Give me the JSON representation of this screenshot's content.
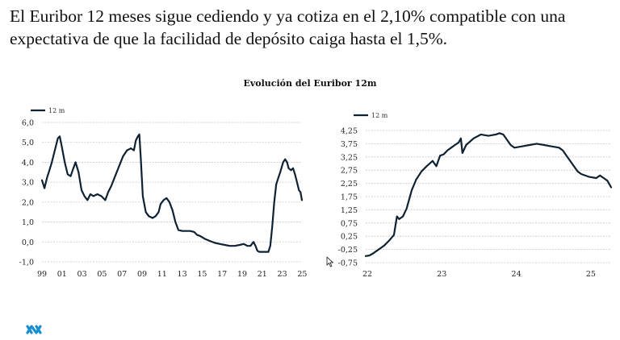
{
  "headline": "El Euribor 12 meses sigue cediendo y ya cotiza en el 2,10% compatible con una expectativa de que la facilidad de depósito caiga hasta el 1,5%.",
  "colors": {
    "line": "#0f2233",
    "grid": "#c8c8c8",
    "logo": "#1a8fd0"
  },
  "icons": {
    "logo": "brand-logo-icon",
    "cursor": "mouse-pointer-icon"
  },
  "chart_data": [
    {
      "type": "line",
      "title": "Evolución del Euribor 12m",
      "legend": "12 m",
      "xlabel": "",
      "ylabel": "",
      "xlim": [
        1999,
        2025.3
      ],
      "ylim": [
        -1.0,
        6.0
      ],
      "yticks": [
        "6,0",
        "5,0",
        "4,0",
        "3,0",
        "2,0",
        "1,0",
        "0,0",
        "-1,0"
      ],
      "xticks": [
        "99",
        "01",
        "03",
        "05",
        "07",
        "09",
        "11",
        "13",
        "15",
        "17",
        "19",
        "21",
        "23",
        "25"
      ],
      "series": [
        {
          "name": "12 m",
          "x": [
            1999.0,
            1999.25,
            1999.5,
            1999.75,
            2000.0,
            2000.3,
            2000.6,
            2000.8,
            2001.0,
            2001.3,
            2001.6,
            2001.9,
            2002.1,
            2002.4,
            2002.7,
            2003.0,
            2003.3,
            2003.6,
            2003.9,
            2004.2,
            2004.6,
            2005.0,
            2005.4,
            2005.7,
            2006.0,
            2006.4,
            2006.8,
            2007.2,
            2007.6,
            2008.0,
            2008.3,
            2008.5,
            2008.7,
            2008.85,
            2009.0,
            2009.2,
            2009.5,
            2009.8,
            2010.2,
            2010.5,
            2010.8,
            2011.0,
            2011.3,
            2011.6,
            2011.9,
            2012.2,
            2012.5,
            2012.8,
            2013.2,
            2013.6,
            2014.0,
            2014.4,
            2014.7,
            2015.0,
            2015.5,
            2016.0,
            2016.5,
            2017.0,
            2017.5,
            2018.0,
            2018.5,
            2019.0,
            2019.4,
            2019.8,
            2020.1,
            2020.4,
            2020.6,
            2020.8,
            2021.0,
            2021.5,
            2021.9,
            2022.1,
            2022.3,
            2022.5,
            2022.7,
            2022.9,
            2023.1,
            2023.4,
            2023.6,
            2023.8,
            2023.95,
            2024.2,
            2024.4,
            2024.6,
            2024.8,
            2025.0,
            2025.15,
            2025.3
          ],
          "values": [
            3.1,
            2.7,
            3.2,
            3.6,
            4.0,
            4.6,
            5.2,
            5.3,
            4.8,
            4.0,
            3.4,
            3.3,
            3.6,
            4.0,
            3.5,
            2.6,
            2.3,
            2.1,
            2.4,
            2.3,
            2.4,
            2.3,
            2.1,
            2.5,
            2.8,
            3.3,
            3.8,
            4.3,
            4.6,
            4.7,
            4.6,
            5.1,
            5.3,
            5.4,
            4.2,
            2.3,
            1.5,
            1.3,
            1.2,
            1.3,
            1.5,
            1.9,
            2.1,
            2.2,
            2.0,
            1.6,
            1.0,
            0.6,
            0.55,
            0.55,
            0.55,
            0.5,
            0.35,
            0.3,
            0.15,
            0.05,
            -0.05,
            -0.1,
            -0.15,
            -0.2,
            -0.2,
            -0.15,
            -0.1,
            -0.2,
            -0.2,
            0.0,
            -0.2,
            -0.45,
            -0.5,
            -0.5,
            -0.5,
            -0.2,
            0.8,
            2.0,
            2.9,
            3.2,
            3.5,
            4.0,
            4.15,
            4.0,
            3.7,
            3.6,
            3.7,
            3.4,
            3.0,
            2.6,
            2.5,
            2.1
          ]
        }
      ]
    },
    {
      "type": "line",
      "title": "",
      "legend": "12 m",
      "xlabel": "",
      "ylabel": "",
      "xlim": [
        2022.0,
        2025.3
      ],
      "ylim": [
        -0.75,
        4.25
      ],
      "yticks": [
        "4,25",
        "3,75",
        "3,25",
        "2,75",
        "2,25",
        "1,75",
        "1,25",
        "0,75",
        "0,25",
        "-0,25",
        "-0,75"
      ],
      "xticks": [
        "22",
        "23",
        "24",
        "25"
      ],
      "series": [
        {
          "name": "12 m",
          "x": [
            2022.0,
            2022.05,
            2022.1,
            2022.15,
            2022.2,
            2022.25,
            2022.32,
            2022.38,
            2022.42,
            2022.45,
            2022.5,
            2022.55,
            2022.62,
            2022.68,
            2022.75,
            2022.82,
            2022.9,
            2022.95,
            2023.0,
            2023.05,
            2023.1,
            2023.15,
            2023.2,
            2023.25,
            2023.28,
            2023.3,
            2023.35,
            2023.45,
            2023.55,
            2023.65,
            2023.75,
            2023.8,
            2023.85,
            2023.9,
            2023.95,
            2024.0,
            2024.1,
            2024.2,
            2024.3,
            2024.4,
            2024.5,
            2024.6,
            2024.65,
            2024.7,
            2024.75,
            2024.8,
            2024.85,
            2024.9,
            2025.0,
            2025.1,
            2025.15,
            2025.2,
            2025.25,
            2025.3
          ],
          "values": [
            -0.5,
            -0.48,
            -0.4,
            -0.3,
            -0.2,
            -0.1,
            0.1,
            0.3,
            1.0,
            0.9,
            1.0,
            1.3,
            2.0,
            2.4,
            2.7,
            2.9,
            3.1,
            2.9,
            3.3,
            3.35,
            3.5,
            3.6,
            3.7,
            3.8,
            3.95,
            3.4,
            3.7,
            3.95,
            4.1,
            4.05,
            4.1,
            4.15,
            4.1,
            3.9,
            3.7,
            3.6,
            3.65,
            3.7,
            3.75,
            3.7,
            3.65,
            3.6,
            3.5,
            3.3,
            3.1,
            2.9,
            2.7,
            2.6,
            2.5,
            2.45,
            2.55,
            2.45,
            2.35,
            2.1
          ]
        }
      ]
    }
  ]
}
